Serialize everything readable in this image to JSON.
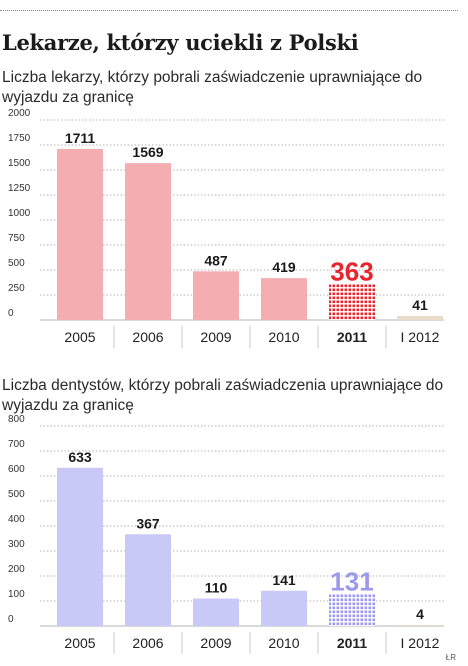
{
  "title": "Lekarze, którzy uciekli z Polski",
  "credit": "ŁR",
  "chart_data": [
    {
      "type": "bar",
      "subtitle": "Liczba lekarzy, którzy pobrali zaświadczenie uprawniające do wyjazdu za granicę",
      "categories": [
        "2005",
        "2006",
        "2009",
        "2010",
        "2011",
        "I 2012"
      ],
      "values": [
        1711,
        1569,
        487,
        419,
        363,
        41
      ],
      "value_labels": [
        "1711",
        "1569",
        "487",
        "419",
        "363",
        "41"
      ],
      "yticks": [
        0,
        250,
        500,
        750,
        1000,
        1250,
        1500,
        1750,
        2000
      ],
      "ytick_labels": [
        "0",
        "250",
        "500",
        "750",
        "1000",
        "1250",
        "1500",
        "1750",
        "2000"
      ],
      "ylim": [
        0,
        2000
      ],
      "xlabel": "",
      "ylabel": "",
      "bar_color": "#f4aeb2",
      "highlight_color": "#e8242c",
      "partial_color": "#eadcca",
      "highlight_index": 4,
      "partial_index": 5,
      "grid": true
    },
    {
      "type": "bar",
      "subtitle": "Liczba dentystów, którzy pobrali zaświadczenia uprawniające do wyjazdu za granicę",
      "categories": [
        "2005",
        "2006",
        "2009",
        "2010",
        "2011",
        "I 2012"
      ],
      "values": [
        633,
        367,
        110,
        141,
        131,
        4
      ],
      "value_labels": [
        "633",
        "367",
        "110",
        "141",
        "131",
        "4"
      ],
      "yticks": [
        0,
        100,
        200,
        300,
        400,
        500,
        600,
        700,
        800
      ],
      "ytick_labels": [
        "0",
        "100",
        "200",
        "300",
        "400",
        "500",
        "600",
        "700",
        "800"
      ],
      "ylim": [
        0,
        800
      ],
      "xlabel": "",
      "ylabel": "",
      "bar_color": "#c8c9f7",
      "highlight_color": "#9b98ee",
      "partial_color": "#eadcca",
      "highlight_index": 4,
      "partial_index": 5,
      "grid": true
    }
  ]
}
